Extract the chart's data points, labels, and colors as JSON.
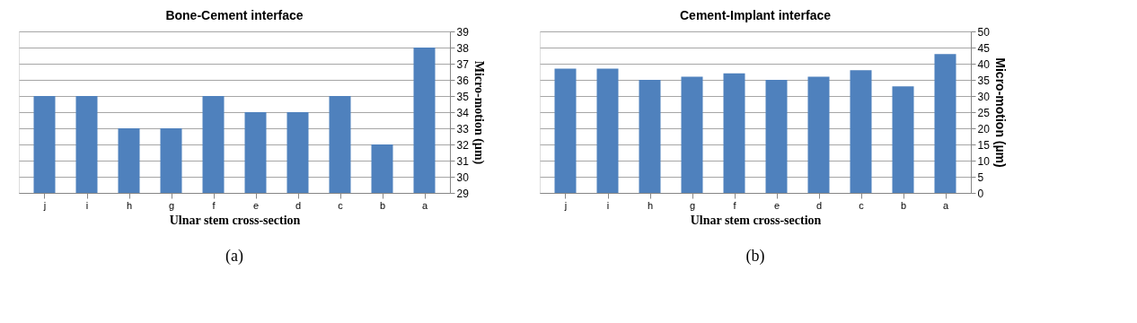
{
  "chart_data": [
    {
      "type": "bar",
      "title": "Bone-Cement interface",
      "xlabel": "Ulnar  stem cross-section",
      "ylabel": "Micro-motion (µm)",
      "categories": [
        "j",
        "i",
        "h",
        "g",
        "f",
        "e",
        "d",
        "c",
        "b",
        "a"
      ],
      "values": [
        35,
        35,
        33,
        33,
        35,
        34,
        34,
        35,
        32,
        38
      ],
      "color": "#4f81bd",
      "ylim": [
        29,
        39
      ],
      "yticks": [
        29,
        30,
        31,
        32,
        33,
        34,
        35,
        36,
        37,
        38,
        39
      ],
      "grid": "y",
      "annotations": [
        "(a)"
      ]
    },
    {
      "type": "bar",
      "title": "Cement-Implant interface",
      "xlabel": "Ulnar  stem cross-section",
      "ylabel": "Micro-motion (µm)",
      "categories": [
        "j",
        "i",
        "h",
        "g",
        "f",
        "e",
        "d",
        "c",
        "b",
        "a"
      ],
      "values": [
        38.5,
        38.5,
        35,
        36,
        37,
        35,
        36,
        38,
        33,
        43
      ],
      "color": "#4f81bd",
      "ylim": [
        0,
        50
      ],
      "yticks": [
        0,
        5,
        10,
        15,
        20,
        25,
        30,
        35,
        40,
        45,
        50
      ],
      "grid": "y",
      "annotations": [
        "(b)"
      ]
    }
  ]
}
